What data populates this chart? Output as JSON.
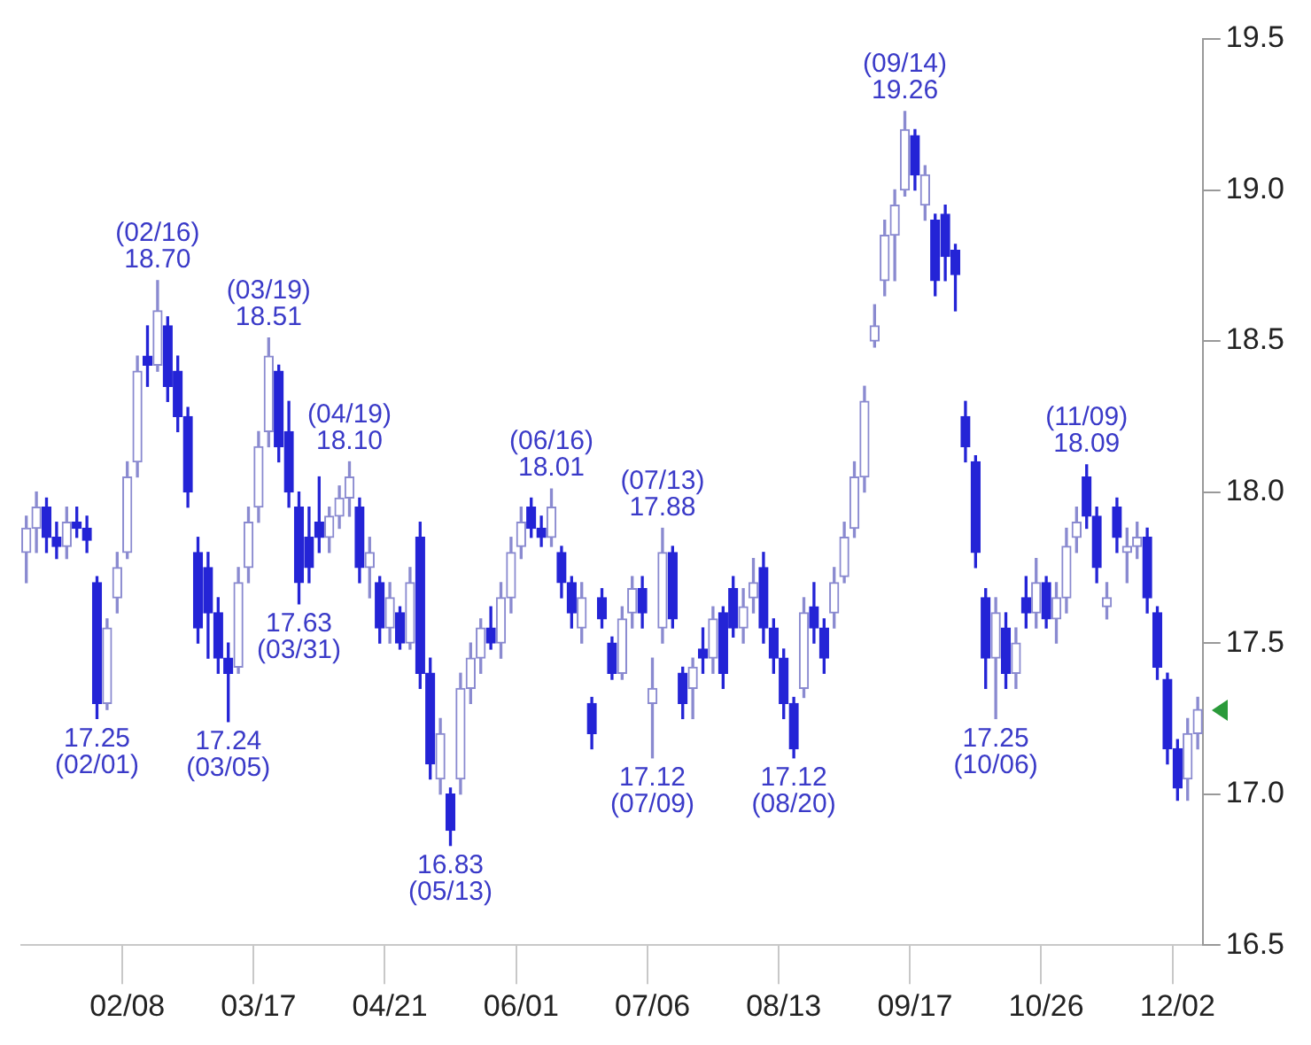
{
  "chart_data": {
    "type": "candlestick",
    "colors": [
      "#8a8ad0",
      "#8a8ad0",
      "#2424d6",
      "#2424d6",
      "#8a8ad0",
      "#2424d6",
      "#2424d6",
      "#2424d6",
      "#8a8ad0",
      "#8a8ad0",
      "#8a8ad0",
      "#8a8ad0",
      "#2424d6",
      "#8a8ad0",
      "#2424d6",
      "#2424d6",
      "#2424d6",
      "#2424d6",
      "#2424d6",
      "#2424d6",
      "#2424d6",
      "#8a8ad0",
      "#8a8ad0",
      "#8a8ad0",
      "#8a8ad0",
      "#2424d6",
      "#2424d6",
      "#2424d6",
      "#2424d6",
      "#2424d6",
      "#8a8ad0",
      "#8a8ad0",
      "#8a8ad0",
      "#2424d6",
      "#8a8ad0",
      "#2424d6",
      "#8a8ad0",
      "#2424d6",
      "#8a8ad0",
      "#2424d6",
      "#2424d6",
      "#8a8ad0",
      "#2424d6",
      "#8a8ad0",
      "#8a8ad0",
      "#8a8ad0",
      "#2424d6",
      "#8a8ad0",
      "#8a8ad0",
      "#8a8ad0",
      "#2424d6",
      "#2424d6",
      "#8a8ad0",
      "#2424d6",
      "#2424d6",
      "#8a8ad0",
      "#2424d6",
      "#2424d6",
      "#2424d6",
      "#8a8ad0",
      "#8a8ad0",
      "#2424d6",
      "#8a8ad0",
      "#8a8ad0",
      "#2424d6",
      "#2424d6",
      "#8a8ad0",
      "#2424d6",
      "#8a8ad0",
      "#2424d6",
      "#2424d6",
      "#8a8ad0",
      "#8a8ad0",
      "#2424d6",
      "#2424d6",
      "#2424d6",
      "#2424d6",
      "#8a8ad0",
      "#2424d6",
      "#2424d6",
      "#8a8ad0",
      "#8a8ad0",
      "#8a8ad0",
      "#8a8ad0",
      "#8a8ad0",
      "#8a8ad0",
      "#8a8ad0",
      "#8a8ad0",
      "#2424d6",
      "#8a8ad0",
      "#2424d6",
      "#2424d6",
      "#2424d6",
      "#2424d6",
      "#2424d6",
      "#2424d6",
      "#8a8ad0",
      "#2424d6",
      "#8a8ad0",
      "#2424d6",
      "#8a8ad0",
      "#2424d6",
      "#8a8ad0",
      "#8a8ad0",
      "#8a8ad0",
      "#2424d6",
      "#2424d6",
      "#8a8ad0",
      "#2424d6",
      "#8a8ad0",
      "#8a8ad0",
      "#2424d6",
      "#2424d6",
      "#2424d6",
      "#2424d6",
      "#8a8ad0",
      "#8a8ad0"
    ],
    "categories": [
      null,
      null,
      null,
      null,
      null,
      null,
      null,
      null,
      null,
      null,
      "02/08",
      null,
      null,
      null,
      null,
      null,
      null,
      null,
      null,
      null,
      null,
      null,
      null,
      "03/17",
      null,
      null,
      null,
      null,
      null,
      null,
      null,
      null,
      null,
      null,
      null,
      null,
      "04/21",
      null,
      null,
      null,
      null,
      null,
      null,
      null,
      null,
      null,
      null,
      null,
      null,
      "06/01",
      null,
      null,
      null,
      null,
      null,
      null,
      null,
      null,
      null,
      null,
      null,
      null,
      "07/06",
      null,
      null,
      null,
      null,
      null,
      null,
      null,
      null,
      null,
      null,
      null,
      null,
      "08/13",
      null,
      null,
      null,
      null,
      null,
      null,
      null,
      null,
      null,
      null,
      null,
      null,
      "09/17",
      null,
      null,
      null,
      null,
      null,
      null,
      null,
      null,
      null,
      null,
      null,
      null,
      "10/26",
      null,
      null,
      null,
      null,
      null,
      null,
      null,
      null,
      null,
      null,
      null,
      null,
      "12/02",
      null,
      null
    ],
    "ohlc": [
      [
        17.8,
        17.92,
        17.7,
        17.88
      ],
      [
        17.88,
        18.0,
        17.8,
        17.95
      ],
      [
        17.95,
        17.98,
        17.8,
        17.85
      ],
      [
        17.85,
        17.9,
        17.78,
        17.82
      ],
      [
        17.82,
        17.95,
        17.78,
        17.9
      ],
      [
        17.9,
        17.95,
        17.85,
        17.88
      ],
      [
        17.88,
        17.92,
        17.8,
        17.84
      ],
      [
        17.7,
        17.72,
        17.25,
        17.3
      ],
      [
        17.3,
        17.58,
        17.28,
        17.55
      ],
      [
        17.65,
        17.8,
        17.6,
        17.75
      ],
      [
        17.8,
        18.1,
        17.78,
        18.05
      ],
      [
        18.1,
        18.45,
        18.05,
        18.4
      ],
      [
        18.45,
        18.55,
        18.35,
        18.42
      ],
      [
        18.42,
        18.7,
        18.4,
        18.6
      ],
      [
        18.55,
        18.58,
        18.3,
        18.35
      ],
      [
        18.4,
        18.45,
        18.2,
        18.25
      ],
      [
        18.25,
        18.28,
        17.95,
        18.0
      ],
      [
        17.8,
        17.85,
        17.5,
        17.55
      ],
      [
        17.75,
        17.8,
        17.45,
        17.6
      ],
      [
        17.6,
        17.65,
        17.4,
        17.45
      ],
      [
        17.45,
        17.5,
        17.24,
        17.4
      ],
      [
        17.42,
        17.75,
        17.4,
        17.7
      ],
      [
        17.75,
        17.95,
        17.7,
        17.9
      ],
      [
        17.95,
        18.2,
        17.9,
        18.15
      ],
      [
        18.2,
        18.51,
        18.15,
        18.45
      ],
      [
        18.4,
        18.42,
        18.1,
        18.15
      ],
      [
        18.2,
        18.3,
        17.95,
        18.0
      ],
      [
        17.95,
        18.0,
        17.63,
        17.7
      ],
      [
        17.85,
        17.95,
        17.7,
        17.75
      ],
      [
        17.9,
        18.05,
        17.8,
        17.85
      ],
      [
        17.85,
        17.95,
        17.8,
        17.92
      ],
      [
        17.92,
        18.02,
        17.88,
        17.98
      ],
      [
        17.98,
        18.1,
        17.92,
        18.05
      ],
      [
        17.95,
        17.98,
        17.7,
        17.75
      ],
      [
        17.75,
        17.85,
        17.65,
        17.8
      ],
      [
        17.7,
        17.72,
        17.5,
        17.55
      ],
      [
        17.55,
        17.7,
        17.5,
        17.65
      ],
      [
        17.6,
        17.62,
        17.48,
        17.5
      ],
      [
        17.5,
        17.75,
        17.48,
        17.7
      ],
      [
        17.85,
        17.9,
        17.35,
        17.4
      ],
      [
        17.4,
        17.45,
        17.05,
        17.1
      ],
      [
        17.05,
        17.25,
        17.0,
        17.2
      ],
      [
        17.0,
        17.02,
        16.83,
        16.88
      ],
      [
        17.05,
        17.4,
        17.0,
        17.35
      ],
      [
        17.35,
        17.5,
        17.3,
        17.45
      ],
      [
        17.45,
        17.58,
        17.4,
        17.55
      ],
      [
        17.55,
        17.62,
        17.48,
        17.5
      ],
      [
        17.5,
        17.7,
        17.45,
        17.65
      ],
      [
        17.65,
        17.85,
        17.6,
        17.8
      ],
      [
        17.82,
        17.95,
        17.78,
        17.9
      ],
      [
        17.95,
        17.98,
        17.85,
        17.88
      ],
      [
        17.88,
        17.92,
        17.82,
        17.85
      ],
      [
        17.85,
        18.01,
        17.82,
        17.95
      ],
      [
        17.8,
        17.82,
        17.65,
        17.7
      ],
      [
        17.7,
        17.72,
        17.55,
        17.6
      ],
      [
        17.55,
        17.7,
        17.5,
        17.65
      ],
      [
        17.3,
        17.32,
        17.15,
        17.2
      ],
      [
        17.65,
        17.68,
        17.55,
        17.58
      ],
      [
        17.5,
        17.52,
        17.38,
        17.4
      ],
      [
        17.4,
        17.62,
        17.38,
        17.58
      ],
      [
        17.6,
        17.72,
        17.55,
        17.68
      ],
      [
        17.68,
        17.72,
        17.55,
        17.6
      ],
      [
        17.3,
        17.45,
        17.12,
        17.35
      ],
      [
        17.55,
        17.88,
        17.5,
        17.8
      ],
      [
        17.8,
        17.82,
        17.55,
        17.58
      ],
      [
        17.4,
        17.42,
        17.25,
        17.3
      ],
      [
        17.35,
        17.45,
        17.25,
        17.42
      ],
      [
        17.48,
        17.55,
        17.4,
        17.45
      ],
      [
        17.45,
        17.62,
        17.4,
        17.58
      ],
      [
        17.6,
        17.62,
        17.35,
        17.4
      ],
      [
        17.68,
        17.72,
        17.52,
        17.55
      ],
      [
        17.55,
        17.68,
        17.5,
        17.62
      ],
      [
        17.65,
        17.78,
        17.6,
        17.7
      ],
      [
        17.75,
        17.8,
        17.5,
        17.55
      ],
      [
        17.55,
        17.58,
        17.4,
        17.45
      ],
      [
        17.45,
        17.48,
        17.25,
        17.3
      ],
      [
        17.3,
        17.32,
        17.12,
        17.15
      ],
      [
        17.35,
        17.65,
        17.32,
        17.6
      ],
      [
        17.62,
        17.7,
        17.5,
        17.55
      ],
      [
        17.55,
        17.58,
        17.4,
        17.45
      ],
      [
        17.6,
        17.75,
        17.55,
        17.7
      ],
      [
        17.72,
        17.9,
        17.7,
        17.85
      ],
      [
        17.88,
        18.1,
        17.85,
        18.05
      ],
      [
        18.05,
        18.35,
        18.0,
        18.3
      ],
      [
        18.5,
        18.62,
        18.48,
        18.55
      ],
      [
        18.7,
        18.9,
        18.65,
        18.85
      ],
      [
        18.85,
        19.0,
        18.7,
        18.95
      ],
      [
        19.0,
        19.26,
        18.98,
        19.2
      ],
      [
        19.18,
        19.2,
        19.0,
        19.05
      ],
      [
        18.95,
        19.08,
        18.9,
        19.05
      ],
      [
        18.9,
        18.92,
        18.65,
        18.7
      ],
      [
        18.92,
        18.95,
        18.7,
        18.78
      ],
      [
        18.8,
        18.82,
        18.6,
        18.72
      ],
      [
        18.25,
        18.3,
        18.1,
        18.15
      ],
      [
        18.1,
        18.12,
        17.75,
        17.8
      ],
      [
        17.65,
        17.68,
        17.35,
        17.45
      ],
      [
        17.45,
        17.65,
        17.25,
        17.6
      ],
      [
        17.55,
        17.6,
        17.35,
        17.4
      ],
      [
        17.4,
        17.55,
        17.35,
        17.5
      ],
      [
        17.65,
        17.72,
        17.55,
        17.6
      ],
      [
        17.6,
        17.78,
        17.55,
        17.7
      ],
      [
        17.7,
        17.72,
        17.55,
        17.58
      ],
      [
        17.58,
        17.7,
        17.5,
        17.65
      ],
      [
        17.65,
        17.88,
        17.6,
        17.82
      ],
      [
        17.85,
        17.95,
        17.8,
        17.9
      ],
      [
        18.05,
        18.09,
        17.88,
        17.92
      ],
      [
        17.92,
        17.95,
        17.7,
        17.75
      ],
      [
        17.62,
        17.7,
        17.58,
        17.65
      ],
      [
        17.95,
        17.98,
        17.8,
        17.85
      ],
      [
        17.8,
        17.88,
        17.7,
        17.82
      ],
      [
        17.82,
        17.9,
        17.78,
        17.85
      ],
      [
        17.85,
        17.88,
        17.6,
        17.65
      ],
      [
        17.6,
        17.62,
        17.38,
        17.42
      ],
      [
        17.38,
        17.4,
        17.1,
        17.15
      ],
      [
        17.15,
        17.18,
        16.98,
        17.02
      ],
      [
        17.05,
        17.25,
        16.98,
        17.2
      ],
      [
        17.2,
        17.32,
        17.15,
        17.28
      ]
    ],
    "ylim": [
      16.5,
      19.5
    ],
    "yticks": [
      16.5,
      {
        "value": 17,
        "label": "17.0"
      },
      17.5,
      {
        "value": 18,
        "label": "18.0"
      },
      18.5,
      {
        "value": 19,
        "label": "19.0"
      },
      19.5
    ],
    "grid": false,
    "legend": false,
    "annotations": [
      {
        "text": "17.25\n(02/01)",
        "y": 17.25
      },
      {
        "text": "(02/16)\n18.70",
        "y": 18.7
      },
      {
        "text": "17.24\n(03/05)",
        "y": 17.24
      },
      {
        "text": "(03/19)\n18.51",
        "y": 18.51
      },
      {
        "text": "17.63\n(03/31)",
        "y": 17.63
      },
      {
        "text": "(04/19)\n18.10",
        "y": 18.1
      },
      {
        "text": "16.83\n(05/13)",
        "y": 16.83
      },
      {
        "text": "(06/16)\n18.01",
        "y": 18.01
      },
      {
        "text": "17.12\n(07/09)",
        "y": 17.12
      },
      {
        "text": "(07/13)\n17.88",
        "y": 17.88
      },
      {
        "text": "17.12\n(08/20)",
        "y": 17.12
      },
      {
        "text": "(09/14)\n19.26",
        "y": 19.26
      },
      {
        "text": "17.25\n(10/06)",
        "y": 17.25
      },
      {
        "text": "(11/09)\n18.09",
        "y": 18.09
      }
    ]
  }
}
